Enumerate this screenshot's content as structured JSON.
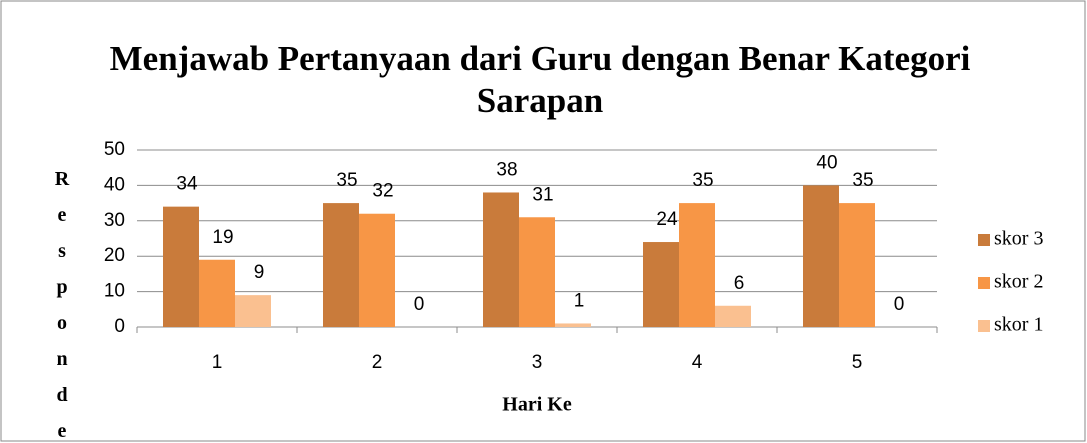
{
  "chart_data": {
    "type": "bar",
    "title": "Menjawab Pertanyaan dari Guru dengan Benar Kategori Sarapan",
    "x_label": "Hari Ke",
    "y_label": "Responde",
    "categories": [
      "1",
      "2",
      "3",
      "4",
      "5"
    ],
    "series": [
      {
        "name": "skor 3",
        "color": "#c97b3b",
        "values": [
          34,
          35,
          38,
          24,
          40
        ]
      },
      {
        "name": "skor 2",
        "color": "#f79646",
        "values": [
          19,
          32,
          31,
          35,
          35
        ]
      },
      {
        "name": "skor 1",
        "color": "#fac090",
        "values": [
          9,
          0,
          1,
          6,
          0
        ]
      }
    ],
    "ylim": [
      0,
      50
    ],
    "yticks": [
      0,
      10,
      20,
      30,
      40,
      50
    ],
    "grid": true,
    "legend": "right"
  }
}
